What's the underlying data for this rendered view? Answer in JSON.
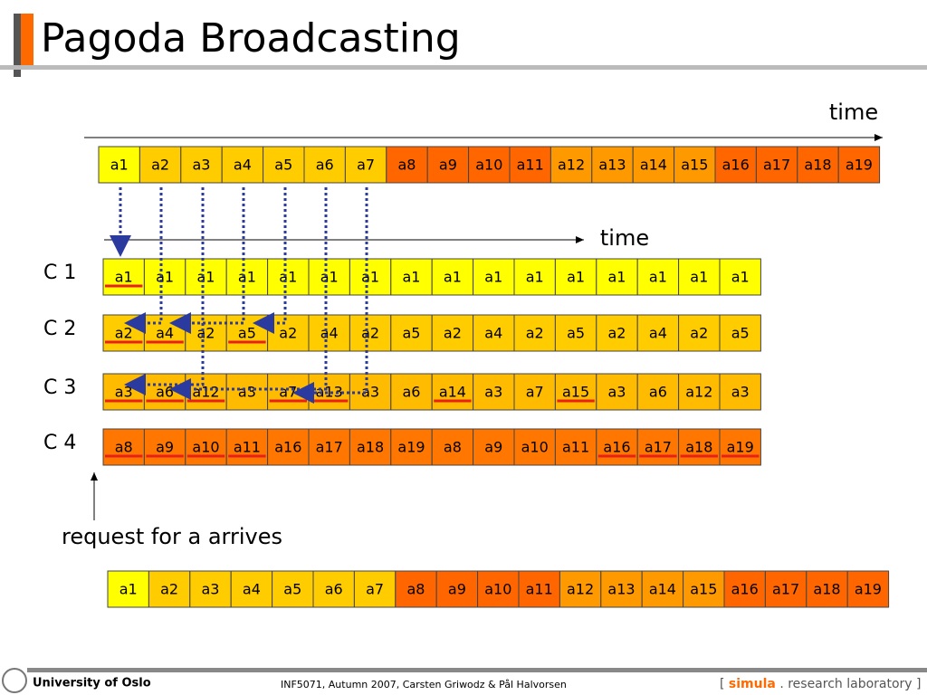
{
  "title": "Pagoda Broadcasting",
  "time_labels": [
    "time",
    "time"
  ],
  "top_segments": {
    "labels": [
      "a1",
      "a2",
      "a3",
      "a4",
      "a5",
      "a6",
      "a7",
      "a8",
      "a9",
      "a10",
      "a11",
      "a12",
      "a13",
      "a14",
      "a15",
      "a16",
      "a17",
      "a18",
      "a19"
    ],
    "colors": [
      "#ffff00",
      "#ffcc00",
      "#ffcc00",
      "#ffcc00",
      "#ffcc00",
      "#ffcc00",
      "#ffcc00",
      "#ff6600",
      "#ff6600",
      "#ff6600",
      "#ff6600",
      "#ff9900",
      "#ff9900",
      "#ff9900",
      "#ff9900",
      "#ff6600",
      "#ff6600",
      "#ff6600",
      "#ff6600"
    ]
  },
  "channels": [
    {
      "name": "C 1",
      "color": "#ffff00",
      "cells": [
        "a1",
        "a1",
        "a1",
        "a1",
        "a1",
        "a1",
        "a1",
        "a1",
        "a1",
        "a1",
        "a1",
        "a1",
        "a1",
        "a1",
        "a1",
        "a1"
      ],
      "underline": [
        0
      ]
    },
    {
      "name": "C 2",
      "color": "#ffcc00",
      "cells": [
        "a2",
        "a4",
        "a2",
        "a5",
        "a2",
        "a4",
        "a2",
        "a5",
        "a2",
        "a4",
        "a2",
        "a5",
        "a2",
        "a4",
        "a2",
        "a5"
      ],
      "underline": [
        0,
        1,
        3
      ]
    },
    {
      "name": "C 3",
      "color": "#ffbb00",
      "cells": [
        "a3",
        "a6",
        "a12",
        "a3",
        "a7",
        "a13",
        "a3",
        "a6",
        "a14",
        "a3",
        "a7",
        "a15",
        "a3",
        "a6",
        "a12",
        "a3"
      ],
      "underline": [
        0,
        1,
        2,
        4,
        5,
        8,
        11
      ]
    },
    {
      "name": "C 4",
      "color": "#ff7700",
      "cells": [
        "a8",
        "a9",
        "a10",
        "a11",
        "a16",
        "a17",
        "a18",
        "a19",
        "a8",
        "a9",
        "a10",
        "a11",
        "a16",
        "a17",
        "a18",
        "a19"
      ],
      "underline": [
        0,
        1,
        2,
        3,
        12,
        13,
        14,
        15
      ]
    }
  ],
  "request_label": "request for a arrives",
  "bottom_segments": {
    "labels": [
      "a1",
      "a2",
      "a3",
      "a4",
      "a5",
      "a6",
      "a7",
      "a8",
      "a9",
      "a10",
      "a11",
      "a12",
      "a13",
      "a14",
      "a15",
      "a16",
      "a17",
      "a18",
      "a19"
    ],
    "colors": [
      "#ffff00",
      "#ffcc00",
      "#ffcc00",
      "#ffcc00",
      "#ffcc00",
      "#ffcc00",
      "#ffcc00",
      "#ff6600",
      "#ff6600",
      "#ff6600",
      "#ff6600",
      "#ff9900",
      "#ff9900",
      "#ff9900",
      "#ff9900",
      "#ff6600",
      "#ff6600",
      "#ff6600",
      "#ff6600"
    ]
  },
  "footer": {
    "university": "University of Oslo",
    "course": "INF5071,  Autumn 2007,  Carsten Griwodz & Pål Halvorsen",
    "lab_open": "[",
    "lab_name": "simula",
    "lab_rest": ". research laboratory ]"
  }
}
